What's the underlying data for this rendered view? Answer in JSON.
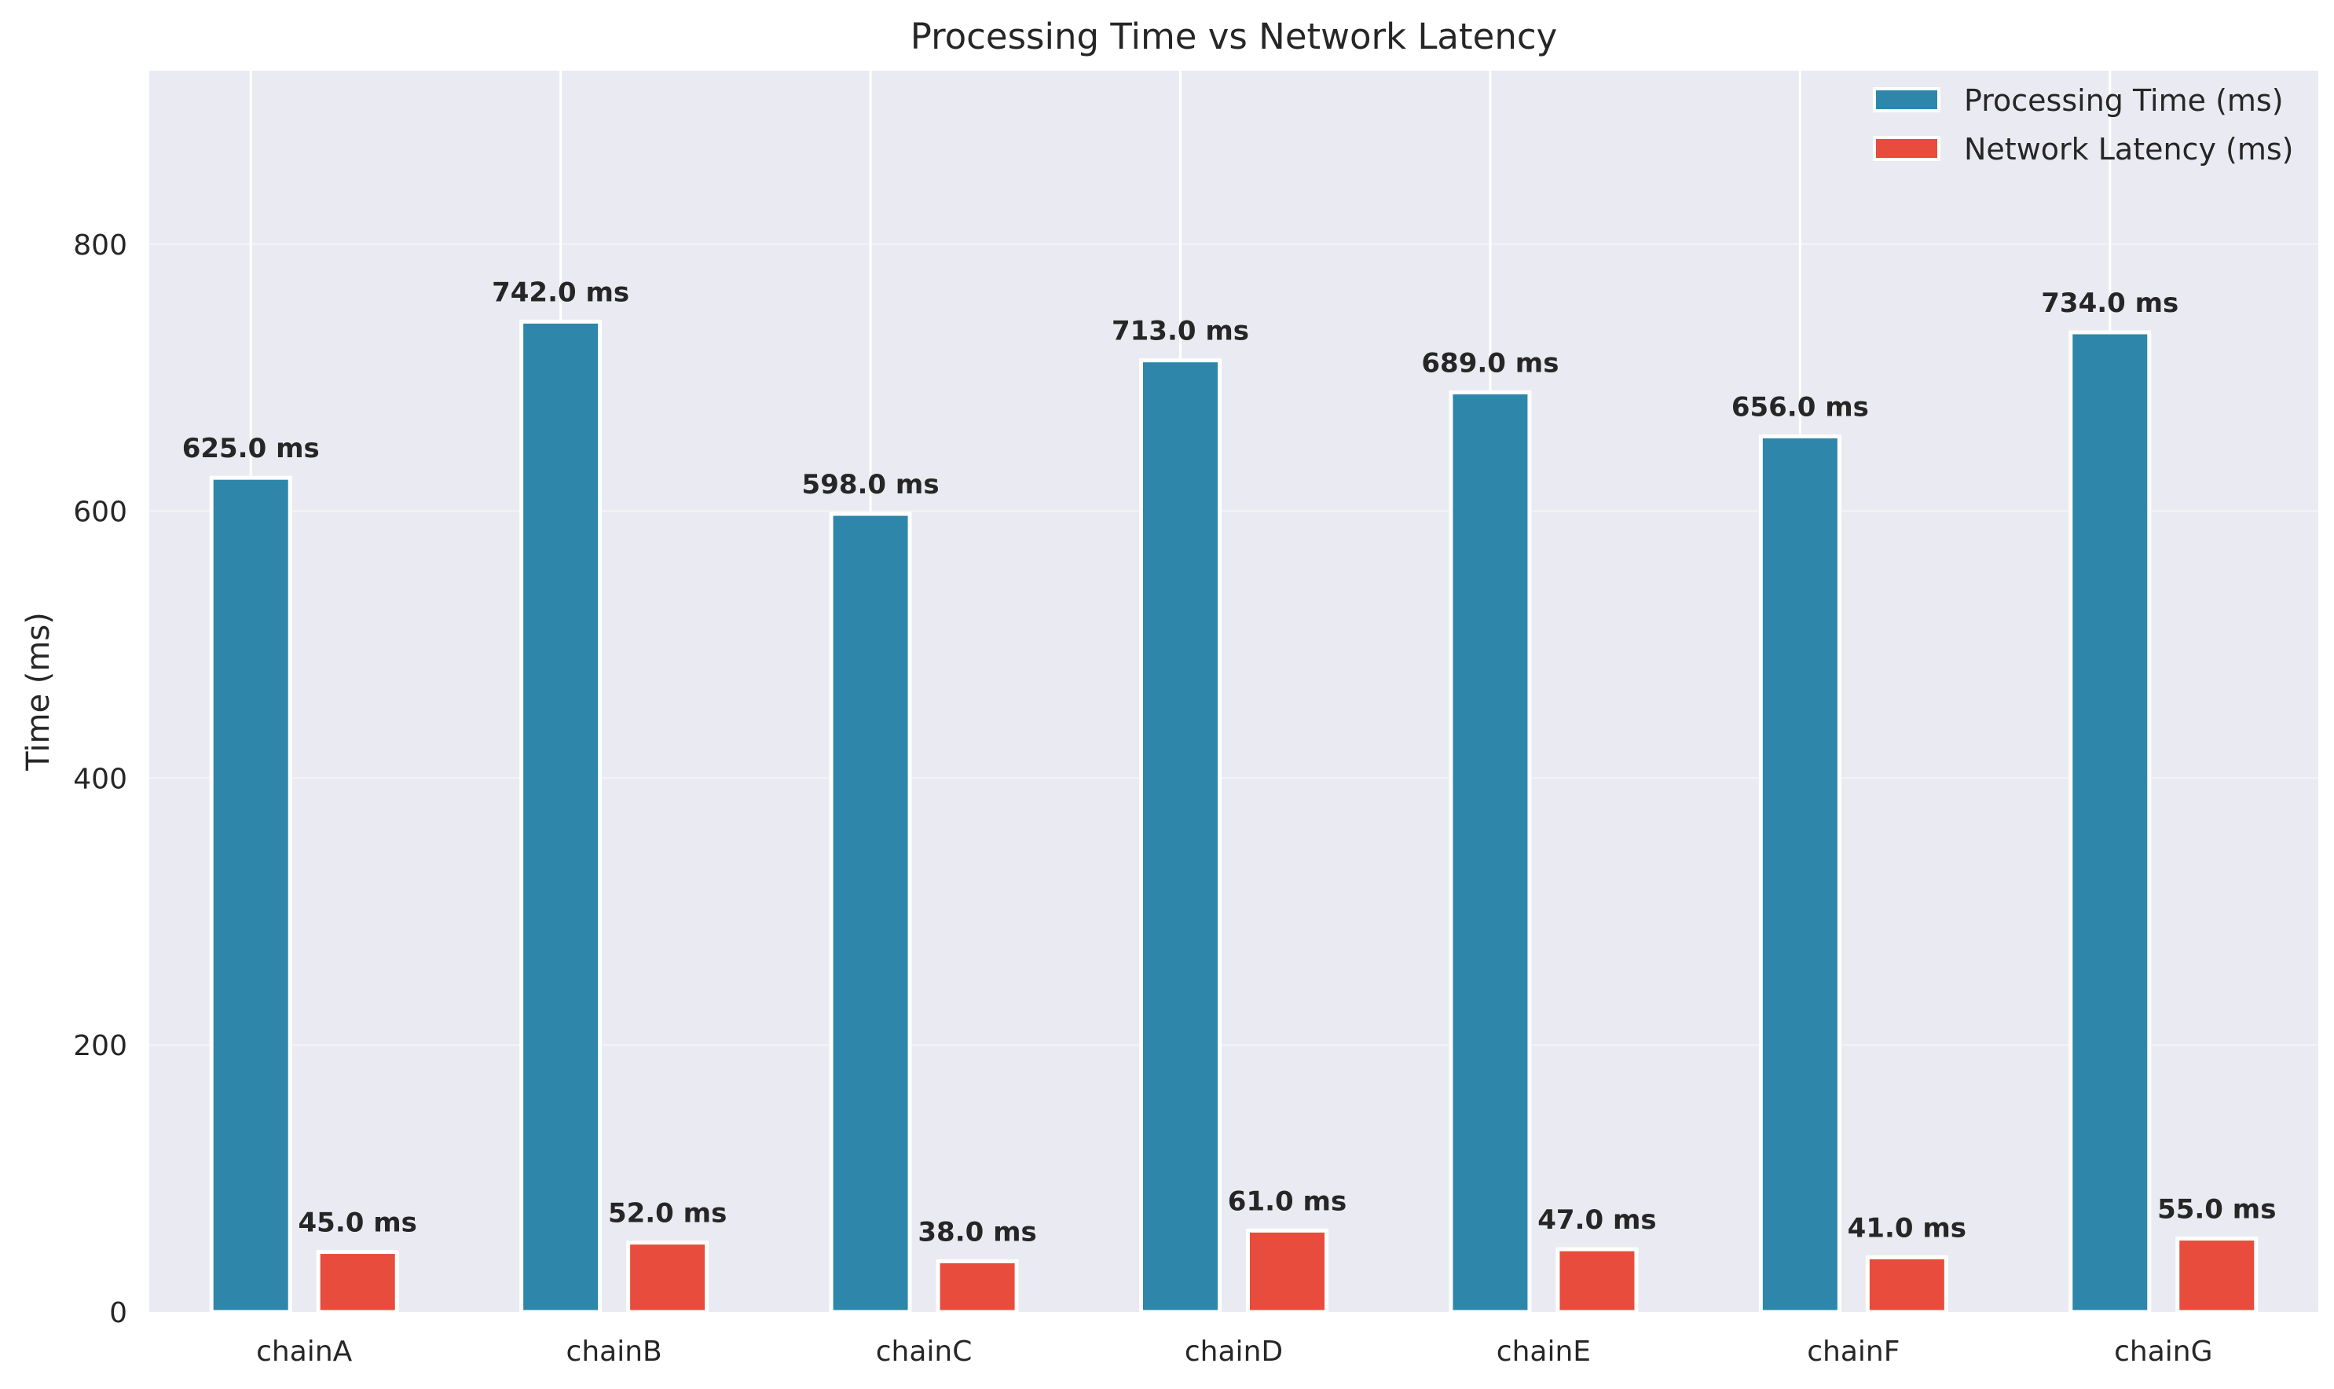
{
  "chart_data": {
    "type": "bar",
    "title": "Processing Time vs Network Latency",
    "xlabel": "",
    "ylabel": "Time (ms)",
    "ylim": [
      0,
      930
    ],
    "yticks": [
      0,
      200,
      400,
      600,
      800
    ],
    "categories": [
      "chainA",
      "chainB",
      "chainC",
      "chainD",
      "chainE",
      "chainF",
      "chainG"
    ],
    "series": [
      {
        "name": "Processing Time (ms)",
        "color": "#2e86ab",
        "values": [
          625.0,
          742.0,
          598.0,
          713.0,
          689.0,
          656.0,
          734.0
        ],
        "labels": [
          "625.0 ms",
          "742.0 ms",
          "598.0 ms",
          "713.0 ms",
          "689.0 ms",
          "656.0 ms",
          "734.0 ms"
        ]
      },
      {
        "name": "Network Latency (ms)",
        "color": "#e74c3c",
        "values": [
          45.0,
          52.0,
          38.0,
          61.0,
          47.0,
          41.0,
          55.0
        ],
        "labels": [
          "45.0 ms",
          "52.0 ms",
          "38.0 ms",
          "61.0 ms",
          "47.0 ms",
          "41.0 ms",
          "55.0 ms"
        ]
      }
    ],
    "grid": true,
    "legend_position": "top-right",
    "background_color": "#eaeaf2"
  }
}
